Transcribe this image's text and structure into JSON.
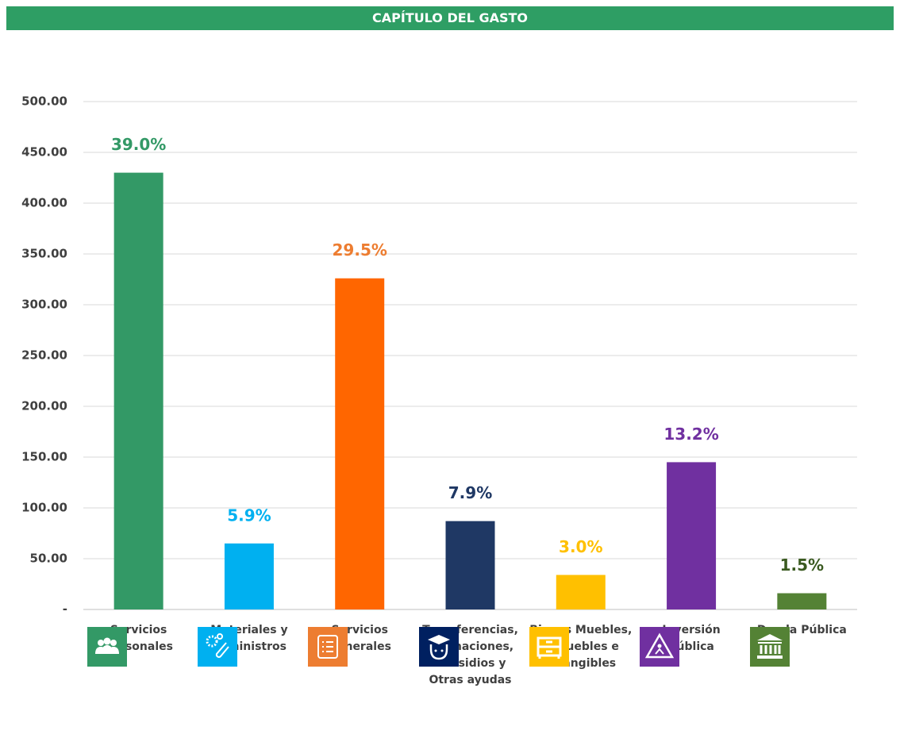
{
  "chart_data": {
    "type": "bar",
    "title": "CAPÍTULO DEL GASTO",
    "categories": [
      "Servicios Personales",
      "Materiales y Suministros",
      "Servicios Generales",
      "Transferencias, Asignaciones, Subsidios y Otras ayudas",
      "Bienes Muebles, Inmuebles e Intangibles",
      "Inversión Pública",
      "Deuda Pública"
    ],
    "values": [
      430,
      65,
      326,
      87,
      34,
      145,
      16
    ],
    "percent_labels": [
      "39.0%",
      "5.9%",
      "29.5%",
      "7.9%",
      "3.0%",
      "13.2%",
      "1.5%"
    ],
    "colors": [
      "#339966",
      "#00b0f0",
      "#ff6600",
      "#1f3864",
      "#ffc000",
      "#7030a0",
      "#548235"
    ],
    "label_colors": [
      "#339966",
      "#00b0f0",
      "#ed7d31",
      "#1f3864",
      "#ffc000",
      "#7030a0",
      "#3a5a20"
    ],
    "ylim": [
      0,
      500
    ],
    "yticks": [
      {
        "value": 0,
        "label": "-"
      },
      {
        "value": 50,
        "label": "50.00"
      },
      {
        "value": 100,
        "label": "100.00"
      },
      {
        "value": 150,
        "label": "150.00"
      },
      {
        "value": 200,
        "label": "200.00"
      },
      {
        "value": 250,
        "label": "250.00"
      },
      {
        "value": 300,
        "label": "300.00"
      },
      {
        "value": 350,
        "label": "350.00"
      },
      {
        "value": 400,
        "label": "400.00"
      },
      {
        "value": 450,
        "label": "450.00"
      },
      {
        "value": 500,
        "label": "500.00"
      }
    ],
    "grid": true
  }
}
